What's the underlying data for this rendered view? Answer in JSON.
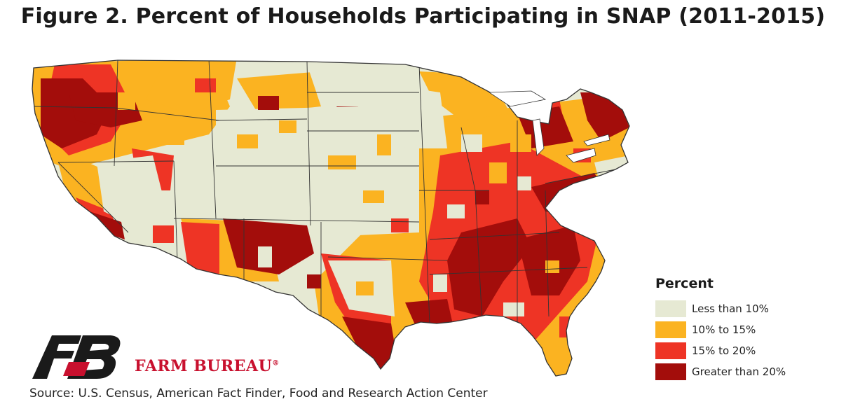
{
  "title": "Figure 2. Percent of Households Participating in SNAP (2011-2015)",
  "legend": {
    "title": "Percent",
    "items": [
      {
        "label": "Less than 10%",
        "color": "#e6e9d3"
      },
      {
        "label": "10% to 15%",
        "color": "#fbb321"
      },
      {
        "label": "15% to 20%",
        "color": "#ee3425"
      },
      {
        "label": "Greater than 20%",
        "color": "#a30d0b"
      }
    ]
  },
  "logo": {
    "name": "FARM BUREAU",
    "mark": "®",
    "icon": "farm-bureau-logo-icon"
  },
  "source": "Source: U.S. Census, American Fact Finder, Food and Research Action Center"
}
